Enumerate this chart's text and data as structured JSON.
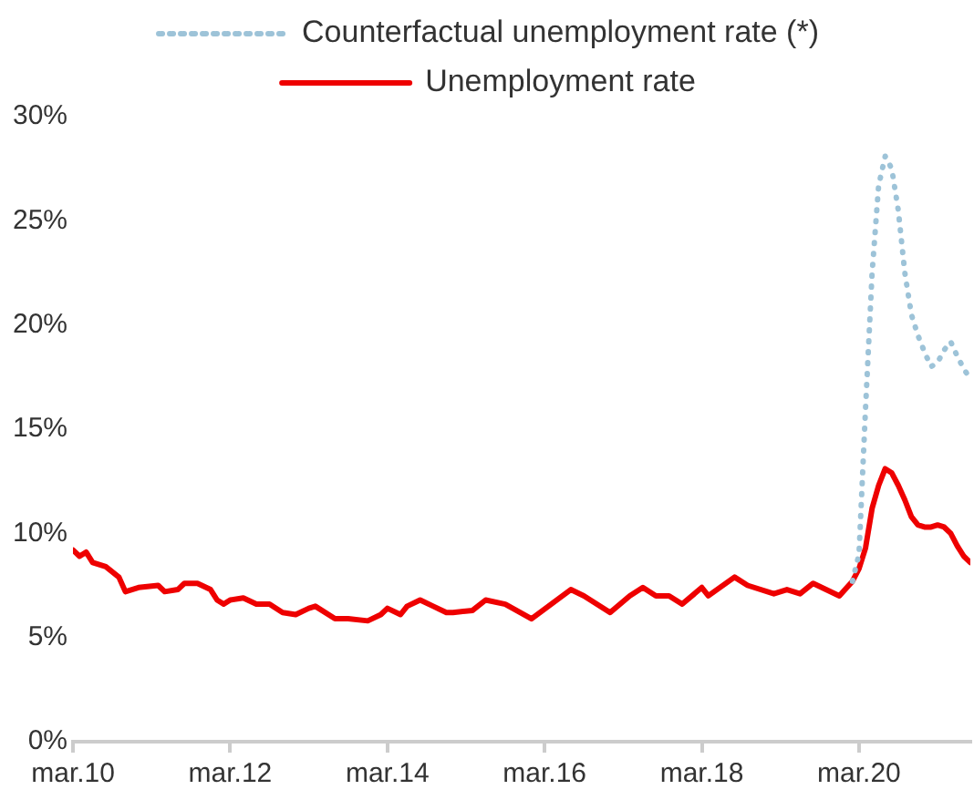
{
  "chart_data": {
    "type": "line",
    "legend": "top",
    "grid": false,
    "marker": "none",
    "xlim": [
      "2010-03",
      "2021-08"
    ],
    "xticks": [
      {
        "value": "2010-03",
        "label": "mar.10"
      },
      {
        "value": "2012-03",
        "label": "mar.12"
      },
      {
        "value": "2014-03",
        "label": "mar.14"
      },
      {
        "value": "2016-03",
        "label": "mar.16"
      },
      {
        "value": "2018-03",
        "label": "mar.18"
      },
      {
        "value": "2020-03",
        "label": "mar.20"
      }
    ],
    "ylim": [
      0,
      30
    ],
    "yticks": [
      {
        "value": 0,
        "label": "0%"
      },
      {
        "value": 5,
        "label": "5%"
      },
      {
        "value": 10,
        "label": "10%"
      },
      {
        "value": 15,
        "label": "15%"
      },
      {
        "value": 20,
        "label": "20%"
      },
      {
        "value": 25,
        "label": "25%"
      },
      {
        "value": 30,
        "label": "30%"
      }
    ],
    "series": [
      {
        "name": "Counterfactual unemployment rate (*)",
        "color": "#9dc3d8",
        "line_style": "dotted",
        "x": [
          "2020-02",
          "2020-03",
          "2020-04",
          "2020-05",
          "2020-06",
          "2020-07",
          "2020-08",
          "2020-09",
          "2020-10",
          "2020-11",
          "2020-12",
          "2021-01",
          "2021-02",
          "2021-03",
          "2021-04",
          "2021-05",
          "2021-06",
          "2021-07",
          "2021-08"
        ],
        "values": [
          7.7,
          9.0,
          16.0,
          22.5,
          26.7,
          28.1,
          27.5,
          25.5,
          22.5,
          20.5,
          19.5,
          18.7,
          18.0,
          18.2,
          18.8,
          19.2,
          18.5,
          17.9,
          17.4
        ]
      },
      {
        "name": "Unemployment rate",
        "color": "#ee0000",
        "line_style": "solid",
        "x": [
          "2010-03",
          "2010-04",
          "2010-05",
          "2010-06",
          "2010-08",
          "2010-10",
          "2010-11",
          "2011-01",
          "2011-04",
          "2011-05",
          "2011-07",
          "2011-08",
          "2011-10",
          "2011-12",
          "2012-01",
          "2012-02",
          "2012-03",
          "2012-05",
          "2012-07",
          "2012-09",
          "2012-11",
          "2013-01",
          "2013-03",
          "2013-04",
          "2013-07",
          "2013-09",
          "2013-12",
          "2014-02",
          "2014-03",
          "2014-05",
          "2014-06",
          "2014-08",
          "2014-10",
          "2014-12",
          "2015-01",
          "2015-04",
          "2015-06",
          "2015-09",
          "2016-01",
          "2016-04",
          "2016-07",
          "2016-09",
          "2017-01",
          "2017-04",
          "2017-06",
          "2017-08",
          "2017-10",
          "2017-12",
          "2018-03",
          "2018-04",
          "2018-08",
          "2018-10",
          "2019-02",
          "2019-04",
          "2019-06",
          "2019-08",
          "2019-12",
          "2020-02",
          "2020-03",
          "2020-04",
          "2020-05",
          "2020-06",
          "2020-07",
          "2020-08",
          "2020-09",
          "2020-10",
          "2020-11",
          "2020-12",
          "2021-01",
          "2021-02",
          "2021-03",
          "2021-04",
          "2021-05",
          "2021-06",
          "2021-07",
          "2021-08"
        ],
        "values": [
          9.2,
          8.9,
          9.1,
          8.6,
          8.4,
          7.9,
          7.2,
          7.4,
          7.5,
          7.2,
          7.3,
          7.6,
          7.6,
          7.3,
          6.8,
          6.6,
          6.8,
          6.9,
          6.6,
          6.6,
          6.2,
          6.1,
          6.4,
          6.5,
          5.9,
          5.9,
          5.8,
          6.1,
          6.4,
          6.1,
          6.5,
          6.8,
          6.5,
          6.2,
          6.2,
          6.3,
          6.8,
          6.6,
          5.9,
          6.6,
          7.3,
          7.0,
          6.2,
          7.0,
          7.4,
          7.0,
          7.0,
          6.6,
          7.4,
          7.0,
          7.9,
          7.5,
          7.1,
          7.3,
          7.1,
          7.6,
          7.0,
          7.7,
          8.3,
          9.3,
          11.2,
          12.3,
          13.1,
          12.9,
          12.3,
          11.6,
          10.8,
          10.4,
          10.3,
          10.3,
          10.4,
          10.3,
          10.0,
          9.4,
          8.9,
          8.6
        ]
      }
    ]
  }
}
